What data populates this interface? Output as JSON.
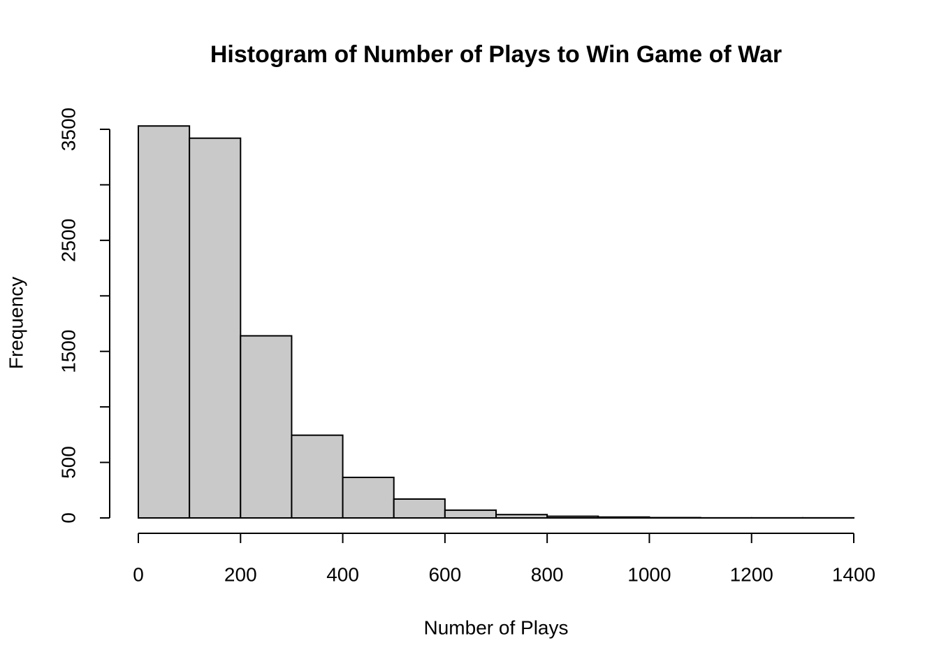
{
  "chart_data": {
    "type": "histogram",
    "title": "Histogram of Number of Plays to Win Game of War",
    "x_label": "Number of Plays",
    "y_label": "Frequency",
    "bins": [
      0,
      100,
      200,
      300,
      400,
      500,
      600,
      700,
      800,
      900,
      1000,
      1100,
      1200,
      1300,
      1400
    ],
    "values": [
      3530,
      3420,
      1640,
      745,
      365,
      170,
      70,
      30,
      15,
      8,
      3,
      1,
      1,
      1
    ],
    "color": "#c9c9c9",
    "edge_color": "#000000",
    "xlim": [
      0,
      1400
    ],
    "xticks": [
      0,
      200,
      400,
      600,
      800,
      1000,
      1200,
      1400
    ],
    "ylim": [
      0,
      3500
    ],
    "yticks": [
      0,
      500,
      {
        "value": 1000,
        "label": null
      },
      1500,
      {
        "value": 2000,
        "label": null
      },
      2500,
      {
        "value": 3000,
        "label": null
      },
      3500
    ]
  }
}
